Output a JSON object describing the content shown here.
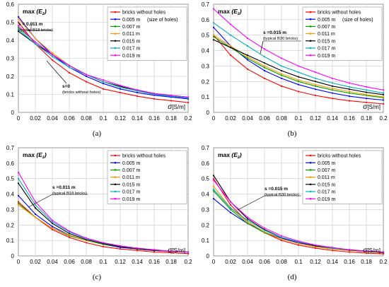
{
  "figure": {
    "legend_labels": [
      "bricks without holes",
      "0.005 m",
      "0.007 m",
      "0.011 m",
      "0.015 m",
      "0.017 m",
      "0.019 m"
    ],
    "legend_note": "(size of holes)",
    "series_colors": [
      "#ff0000",
      "#0000ff",
      "#00a000",
      "#ff9900",
      "#000000",
      "#00b0c0",
      "#ff00ff"
    ]
  },
  "chart_data": [
    {
      "type": "line",
      "caption": "(a)",
      "ylabel_main": "max",
      "ylabel_sub": "(E",
      "ylabel_subscript": "z",
      "ylabel_close": ")",
      "xlabel_sym": "σ",
      "xlabel_unit": "[S/m]",
      "xlim": [
        0,
        0.2
      ],
      "ylim": [
        0,
        0.6
      ],
      "xticks": [
        "0",
        "0.02",
        "0.04",
        "0.06",
        "0.08",
        "0.1",
        "0.12",
        "0.14",
        "0.16",
        "0.18",
        "0.2"
      ],
      "yticks": [
        "0",
        "0.1",
        "0.2",
        "0.3",
        "0.4",
        "0.5",
        "0.6"
      ],
      "grid": true,
      "legend_position": "top-right",
      "annotations": [
        {
          "lines": [
            "s = 0.011 m",
            "(typical B18 bricks)"
          ]
        },
        {
          "lines": [
            "s=0",
            "(bricks without holes)"
          ]
        }
      ],
      "x": [
        0,
        0.02,
        0.04,
        0.06,
        0.08,
        0.1,
        0.12,
        0.14,
        0.16,
        0.18,
        0.2
      ],
      "series": [
        {
          "name": "bricks without holes",
          "values": [
            0.5,
            0.38,
            0.29,
            0.22,
            0.17,
            0.13,
            0.11,
            0.09,
            0.075,
            0.065,
            0.055
          ]
        },
        {
          "name": "0.005 m",
          "values": [
            0.53,
            0.41,
            0.32,
            0.25,
            0.2,
            0.16,
            0.13,
            0.11,
            0.095,
            0.085,
            0.075
          ]
        },
        {
          "name": "0.007 m",
          "values": [
            0.47,
            0.39,
            0.32,
            0.26,
            0.21,
            0.17,
            0.14,
            0.12,
            0.1,
            0.09,
            0.08
          ]
        },
        {
          "name": "0.011 m",
          "values": [
            0.52,
            0.41,
            0.33,
            0.26,
            0.21,
            0.17,
            0.14,
            0.12,
            0.1,
            0.09,
            0.08
          ]
        },
        {
          "name": "0.015 m",
          "values": [
            0.45,
            0.38,
            0.32,
            0.26,
            0.21,
            0.17,
            0.145,
            0.12,
            0.105,
            0.09,
            0.08
          ]
        },
        {
          "name": "0.017 m",
          "values": [
            0.46,
            0.38,
            0.31,
            0.25,
            0.21,
            0.17,
            0.14,
            0.12,
            0.1,
            0.09,
            0.08
          ]
        },
        {
          "name": "0.019 m",
          "values": [
            0.48,
            0.39,
            0.32,
            0.26,
            0.21,
            0.18,
            0.15,
            0.125,
            0.105,
            0.095,
            0.085
          ]
        }
      ]
    },
    {
      "type": "line",
      "caption": "(b)",
      "ylabel_main": "max",
      "ylabel_sub": "(E",
      "ylabel_subscript": "z",
      "ylabel_close": ")",
      "xlabel_sym": "σ",
      "xlabel_unit": "[S/m]",
      "xlim": [
        0,
        0.2
      ],
      "ylim": [
        0,
        0.7
      ],
      "xticks": [
        "0",
        "0.02",
        "0.04",
        "0.06",
        "0.08",
        "0.1",
        "0.12",
        "0.14",
        "0.16",
        "0.18",
        "0.2"
      ],
      "yticks": [
        "0",
        "0.1",
        "0.2",
        "0.3",
        "0.4",
        "0.5",
        "0.6",
        "0.7"
      ],
      "grid": true,
      "legend_position": "top-right",
      "annotations": [
        {
          "lines": [
            "s =0.015 m",
            "(typical B30 bricks)"
          ]
        }
      ],
      "x": [
        0,
        0.02,
        0.04,
        0.06,
        0.08,
        0.1,
        0.12,
        0.14,
        0.16,
        0.18,
        0.2
      ],
      "series": [
        {
          "name": "bricks without holes",
          "values": [
            0.5,
            0.37,
            0.28,
            0.22,
            0.17,
            0.135,
            0.11,
            0.09,
            0.075,
            0.065,
            0.055
          ]
        },
        {
          "name": "0.005 m",
          "values": [
            0.55,
            0.43,
            0.34,
            0.27,
            0.22,
            0.18,
            0.15,
            0.125,
            0.105,
            0.09,
            0.08
          ]
        },
        {
          "name": "0.007 m",
          "values": [
            0.49,
            0.42,
            0.35,
            0.29,
            0.24,
            0.2,
            0.17,
            0.145,
            0.125,
            0.11,
            0.095
          ]
        },
        {
          "name": "0.011 m",
          "values": [
            0.5,
            0.43,
            0.36,
            0.3,
            0.25,
            0.21,
            0.18,
            0.155,
            0.135,
            0.115,
            0.1
          ]
        },
        {
          "name": "0.015 m",
          "values": [
            0.47,
            0.42,
            0.37,
            0.32,
            0.27,
            0.23,
            0.2,
            0.17,
            0.15,
            0.13,
            0.115
          ]
        },
        {
          "name": "0.017 m",
          "values": [
            0.58,
            0.5,
            0.43,
            0.36,
            0.3,
            0.26,
            0.22,
            0.19,
            0.165,
            0.145,
            0.125
          ]
        },
        {
          "name": "0.019 m",
          "values": [
            0.67,
            0.57,
            0.48,
            0.41,
            0.35,
            0.3,
            0.26,
            0.22,
            0.19,
            0.165,
            0.145
          ]
        }
      ]
    },
    {
      "type": "line",
      "caption": "(c)",
      "ylabel_main": "max",
      "ylabel_sub": "(E",
      "ylabel_subscript": "z",
      "ylabel_close": ")",
      "xlabel_sym": "σ",
      "xlabel_unit": "[S/m]",
      "xlim": [
        0,
        0.2
      ],
      "ylim": [
        0,
        0.7
      ],
      "xticks": [
        "0",
        "0.02",
        "0.04",
        "0.06",
        "0.08",
        "0.1",
        "0.12",
        "0.14",
        "0.16",
        "0.18",
        "0.2"
      ],
      "yticks": [
        "0",
        "0.1",
        "0.2",
        "0.3",
        "0.4",
        "0.5",
        "0.6",
        "0.7"
      ],
      "grid": true,
      "legend_position": "top-right",
      "annotations": [
        {
          "lines": [
            "s =0.011 m",
            "(typical B18 bricks)"
          ]
        }
      ],
      "x": [
        0,
        0.02,
        0.04,
        0.06,
        0.08,
        0.1,
        0.12,
        0.14,
        0.16,
        0.18,
        0.2
      ],
      "series": [
        {
          "name": "bricks without holes",
          "values": [
            0.35,
            0.25,
            0.17,
            0.12,
            0.085,
            0.06,
            0.045,
            0.035,
            0.025,
            0.02,
            0.015
          ]
        },
        {
          "name": "0.005 m",
          "values": [
            0.39,
            0.27,
            0.19,
            0.135,
            0.1,
            0.075,
            0.055,
            0.045,
            0.035,
            0.03,
            0.025
          ]
        },
        {
          "name": "0.007 m",
          "values": [
            0.34,
            0.25,
            0.18,
            0.13,
            0.1,
            0.075,
            0.06,
            0.045,
            0.035,
            0.03,
            0.025
          ]
        },
        {
          "name": "0.011 m",
          "values": [
            0.33,
            0.25,
            0.18,
            0.135,
            0.1,
            0.08,
            0.06,
            0.05,
            0.04,
            0.03,
            0.025
          ]
        },
        {
          "name": "0.015 m",
          "values": [
            0.47,
            0.31,
            0.21,
            0.145,
            0.105,
            0.08,
            0.06,
            0.045,
            0.035,
            0.03,
            0.025
          ]
        },
        {
          "name": "0.017 m",
          "values": [
            0.5,
            0.33,
            0.22,
            0.155,
            0.11,
            0.085,
            0.065,
            0.05,
            0.04,
            0.03,
            0.025
          ]
        },
        {
          "name": "0.019 m",
          "values": [
            0.54,
            0.35,
            0.23,
            0.16,
            0.115,
            0.085,
            0.065,
            0.05,
            0.04,
            0.03,
            0.025
          ]
        }
      ]
    },
    {
      "type": "line",
      "caption": "(d)",
      "ylabel_main": "max",
      "ylabel_sub": "(E",
      "ylabel_subscript": "z",
      "ylabel_close": ")",
      "xlabel_sym": "σ",
      "xlabel_unit": "[S/m]",
      "xlim": [
        0,
        0.2
      ],
      "ylim": [
        0,
        0.7
      ],
      "xticks": [
        "0",
        "0.02",
        "0.04",
        "0.06",
        "0.08",
        "0.1",
        "0.12",
        "0.14",
        "0.16",
        "0.18",
        "0.2"
      ],
      "yticks": [
        "0",
        "0.1",
        "0.2",
        "0.3",
        "0.4",
        "0.5",
        "0.6",
        "0.7"
      ],
      "grid": true,
      "legend_position": "top-right",
      "annotations": [
        {
          "lines": [
            "s =0.015 m",
            "(typical B30 bricks)"
          ]
        }
      ],
      "x": [
        0,
        0.02,
        0.04,
        0.06,
        0.08,
        0.1,
        0.12,
        0.14,
        0.16,
        0.18,
        0.2
      ],
      "series": [
        {
          "name": "bricks without holes",
          "values": [
            0.5,
            0.33,
            0.22,
            0.15,
            0.1,
            0.07,
            0.05,
            0.035,
            0.025,
            0.018,
            0.013
          ]
        },
        {
          "name": "0.005 m",
          "values": [
            0.37,
            0.28,
            0.21,
            0.155,
            0.115,
            0.085,
            0.065,
            0.05,
            0.04,
            0.03,
            0.025
          ]
        },
        {
          "name": "0.007 m",
          "values": [
            0.42,
            0.3,
            0.21,
            0.15,
            0.11,
            0.08,
            0.06,
            0.045,
            0.035,
            0.027,
            0.02
          ]
        },
        {
          "name": "0.011 m",
          "values": [
            0.45,
            0.31,
            0.22,
            0.155,
            0.11,
            0.08,
            0.06,
            0.045,
            0.035,
            0.027,
            0.02
          ]
        },
        {
          "name": "0.015 m",
          "values": [
            0.52,
            0.35,
            0.24,
            0.17,
            0.12,
            0.09,
            0.065,
            0.05,
            0.038,
            0.03,
            0.022
          ]
        },
        {
          "name": "0.017 m",
          "values": [
            0.43,
            0.31,
            0.23,
            0.165,
            0.12,
            0.09,
            0.07,
            0.05,
            0.04,
            0.03,
            0.025
          ]
        },
        {
          "name": "0.019 m",
          "values": [
            0.49,
            0.35,
            0.25,
            0.18,
            0.13,
            0.095,
            0.07,
            0.055,
            0.04,
            0.032,
            0.025
          ]
        }
      ]
    }
  ]
}
